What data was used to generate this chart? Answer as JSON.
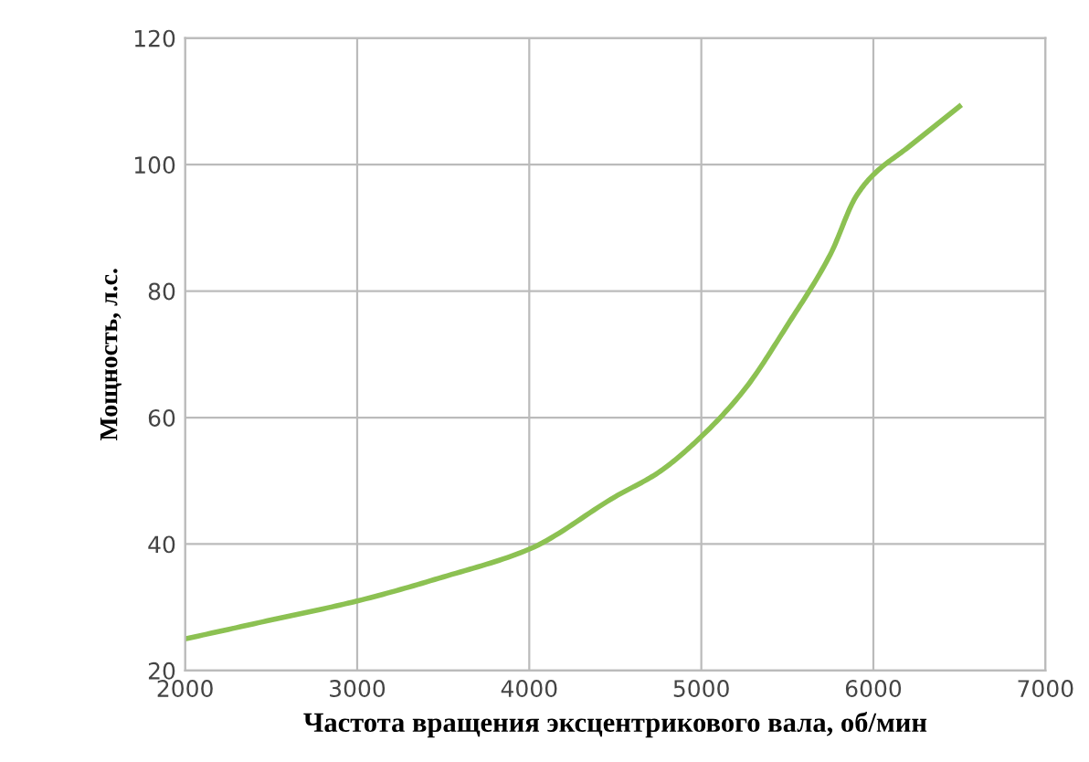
{
  "chart_data": {
    "type": "line",
    "xlabel": "Частота вращения эксцентрикового вала, об/мин",
    "ylabel": "Мощность, л.с.",
    "x": [
      2000,
      2500,
      3000,
      3500,
      4000,
      4500,
      4750,
      5000,
      5250,
      5500,
      5750,
      5900,
      6000,
      6200,
      6500
    ],
    "series": [
      {
        "color": "#8cc152",
        "values": [
          25,
          28,
          31,
          34.8,
          39.2,
          47.5,
          51.3,
          57,
          64.4,
          74.6,
          85.8,
          95,
          98.4,
          102.7,
          109.2
        ]
      }
    ],
    "xlim": [
      2000,
      7000
    ],
    "xticks": [
      2000,
      3000,
      4000,
      5000,
      6000,
      7000
    ],
    "ylim": [
      20,
      120
    ],
    "yticks": [
      20,
      40,
      60,
      80,
      100,
      120
    ],
    "grid": true,
    "marker": "none",
    "line_style": "solid"
  }
}
